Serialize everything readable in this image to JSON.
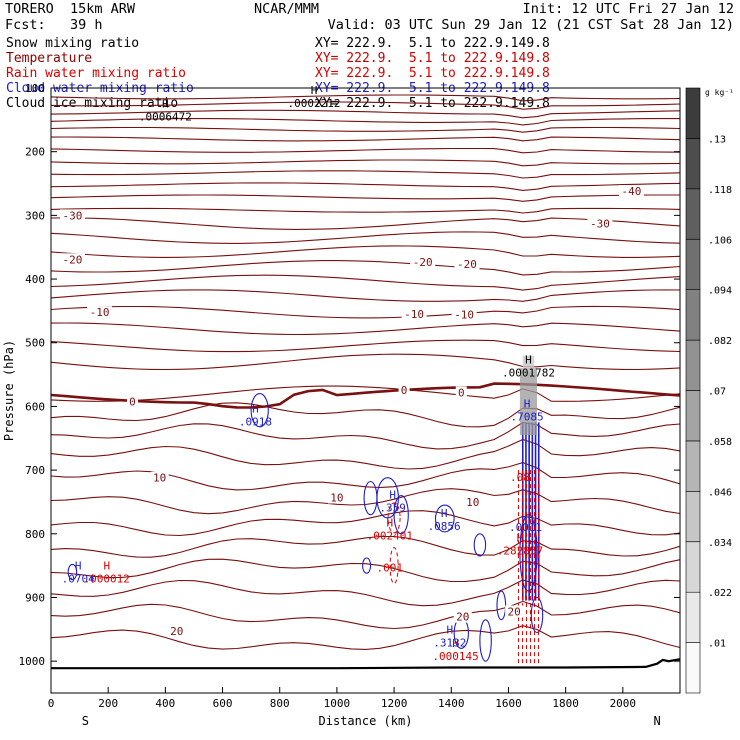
{
  "header": {
    "model": "TORERO  15km ARW",
    "center": "NCAR/MMM",
    "init": "Init: 12 UTC Fri 27 Jan 12",
    "fcst_label": "Fcst:",
    "fcst_value": "39 h",
    "valid": "Valid: 03 UTC Sun 29 Jan 12 (21 CST Sat 28 Jan 12)"
  },
  "variables": [
    {
      "name": "Snow mixing ratio",
      "color": "#000000",
      "xy": "XY= 222.9.  5.1 to 222.9.149.8"
    },
    {
      "name": "Temperature",
      "color": "#8b0000",
      "xy": "XY= 222.9.  5.1 to 222.9.149.8"
    },
    {
      "name": "Rain water mixing ratio",
      "color": "#dd0000",
      "xy": "XY= 222.9.  5.1 to 222.9.149.8"
    },
    {
      "name": "Cloud water mixing ratio",
      "color": "#1e1ec8",
      "xy": "XY= 222.9.  5.1 to 222.9.149.8"
    },
    {
      "name": "Cloud ice mixing ratio",
      "color": "#000000",
      "xy": "XY= 222.9.  5.1 to 222.9.149.8"
    }
  ],
  "chart_data": {
    "type": "cross-section contour",
    "xlabel": "Distance (km)",
    "ylabel": "Pressure (hPa)",
    "xlim": [
      0,
      2200
    ],
    "ylim": [
      1050,
      100
    ],
    "x_ticks": [
      0,
      200,
      400,
      600,
      800,
      1000,
      1200,
      1400,
      1600,
      1800,
      2000
    ],
    "y_ticks": [
      100,
      200,
      300,
      400,
      500,
      600,
      700,
      800,
      900,
      1000
    ],
    "end_labels": {
      "left": "S",
      "right": "N"
    },
    "colorbar": {
      "unit": "g kg⁻¹",
      "levels": [
        0.01,
        0.022,
        0.034,
        0.046,
        0.058,
        0.07,
        0.082,
        0.094,
        0.106,
        0.118,
        0.13
      ],
      "labels": [
        ".01",
        ".022",
        ".034",
        ".046",
        ".058",
        ".07",
        ".082",
        ".094",
        ".106",
        ".118",
        ".13"
      ]
    },
    "temperature_labels": [
      {
        "text": "-40",
        "x": 2030,
        "p": 262
      },
      {
        "text": "-30",
        "x": 75,
        "p": 300
      },
      {
        "text": "-30",
        "x": 1920,
        "p": 313
      },
      {
        "text": "-20",
        "x": 75,
        "p": 369
      },
      {
        "text": "-20",
        "x": 1300,
        "p": 373
      },
      {
        "text": "-20",
        "x": 1455,
        "p": 376
      },
      {
        "text": "-10",
        "x": 170,
        "p": 452
      },
      {
        "text": "-10",
        "x": 1270,
        "p": 455
      },
      {
        "text": "-10",
        "x": 1445,
        "p": 456
      },
      {
        "text": "0",
        "x": 285,
        "p": 592
      },
      {
        "text": "0",
        "x": 1235,
        "p": 574
      },
      {
        "text": "0",
        "x": 1435,
        "p": 578
      },
      {
        "text": "10",
        "x": 380,
        "p": 712
      },
      {
        "text": "10",
        "x": 1000,
        "p": 743
      },
      {
        "text": "10",
        "x": 1475,
        "p": 750
      },
      {
        "text": "20",
        "x": 440,
        "p": 953
      },
      {
        "text": "20",
        "x": 1440,
        "p": 930
      },
      {
        "text": "20",
        "x": 1620,
        "p": 922
      }
    ],
    "extrema": [
      {
        "mark": "H",
        "text": ".0006472",
        "x": 400,
        "p": 143,
        "color": "#000000"
      },
      {
        "mark": "H",
        "text": ".0002212",
        "x": 920,
        "p": 122,
        "color": "#000000"
      },
      {
        "mark": "H",
        "text": ".0001782",
        "x": 1670,
        "p": 545,
        "color": "#000000"
      },
      {
        "mark": "H",
        "text": ".0918",
        "x": 715,
        "p": 622,
        "color": "#1e1ec8"
      },
      {
        "mark": "H",
        "text": ".7085",
        "x": 1665,
        "p": 614,
        "color": "#1e1ec8"
      },
      {
        "mark": "H",
        "text": ".359",
        "x": 1195,
        "p": 757,
        "color": "#1e1ec8"
      },
      {
        "mark": "H",
        "text": ".0856",
        "x": 1375,
        "p": 786,
        "color": "#1e1ec8"
      },
      {
        "mark": "H",
        "text": ".0704",
        "x": 95,
        "p": 869,
        "color": "#1e1ec8"
      },
      {
        "mark": "H",
        "text": ".3132",
        "x": 1395,
        "p": 969,
        "color": "#1e1ec8"
      },
      {
        "mark": "H",
        "text": ".002401",
        "x": 1185,
        "p": 801,
        "color": "#dd0000"
      },
      {
        "mark": "H",
        "text": ".282857",
        "x": 1640,
        "p": 825,
        "color": "#dd0000"
      },
      {
        "mark": "H",
        "text": ".000012",
        "x": 195,
        "p": 869,
        "color": "#dd0000"
      },
      {
        "mark": "H",
        "text": ".000145",
        "x": 1415,
        "p": 990,
        "color": "#dd0000"
      }
    ],
    "contour_labels": [
      {
        "text": ".001",
        "x": 1185,
        "p": 853,
        "color": "#dd0000"
      },
      {
        "text": ".0011",
        "x": 1660,
        "p": 789,
        "color": "#1e1ec8"
      },
      {
        "text": ".08",
        "x": 1640,
        "p": 711,
        "color": "#dd0000"
      }
    ]
  }
}
